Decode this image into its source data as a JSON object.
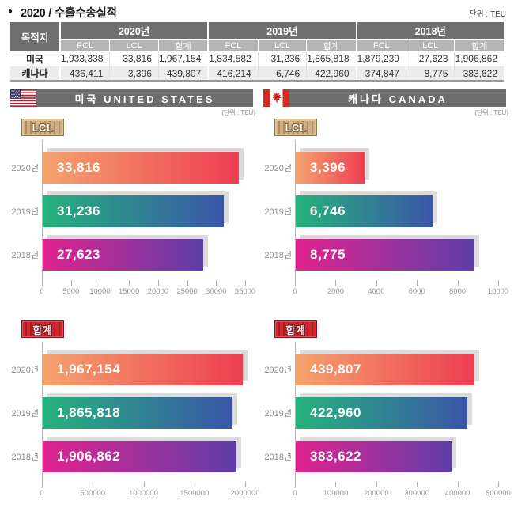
{
  "title": "2020 / 수출수송실적",
  "unit_label": "단위 : TEU",
  "colors": {
    "header_dark": "#6f6f6f",
    "header_light": "#b5b5b5",
    "row_alt": "#ececec",
    "section_bar": "#6d6d6d",
    "bar_shadow": "#dbdbdb",
    "badge_lcl": "#c9a87c",
    "badge_total": "#cb2127"
  },
  "bar_colors": [
    [
      "#f4a36d",
      "#ee3e52"
    ],
    [
      "#25b37c",
      "#3a55a8"
    ],
    [
      "#e1238d",
      "#5e3ea8"
    ]
  ],
  "table": {
    "dest_header": "목적지",
    "year_groups": [
      "2020년",
      "2019년",
      "2018년"
    ],
    "sub_headers": [
      "FCL",
      "LCL",
      "합계"
    ],
    "rows": [
      {
        "dest": "미국",
        "values": [
          "1,933,338",
          "33,816",
          "1,967,154",
          "1,834,582",
          "31,236",
          "1,865,818",
          "1,879,239",
          "27,623",
          "1,906,862"
        ]
      },
      {
        "dest": "캐나다",
        "values": [
          "436,411",
          "3,396",
          "439,807",
          "416,214",
          "6,746",
          "422,960",
          "374,847",
          "8,775",
          "383,622"
        ]
      }
    ]
  },
  "sections": [
    {
      "title": "미국 UNITED STATES",
      "unit_note": "(단위 : TEU)"
    },
    {
      "title": "캐나다 CANADA",
      "unit_note": "(단위 : TEU)"
    }
  ],
  "chart_data": [
    {
      "type": "bar",
      "orientation": "horizontal",
      "section": "미국 UNITED STATES",
      "badge": "LCL",
      "categories": [
        "2020년",
        "2019년",
        "2018년"
      ],
      "values": [
        33816,
        31236,
        27623
      ],
      "value_labels": [
        "33,816",
        "31,236",
        "27,623"
      ],
      "xlim": [
        0,
        35000
      ],
      "xticks": [
        0,
        5000,
        10000,
        15000,
        20000,
        25000,
        30000,
        35000
      ],
      "xtick_labels": [
        "0",
        "5000",
        "10000",
        "15000",
        "20000",
        "25000",
        "30000",
        "35000"
      ]
    },
    {
      "type": "bar",
      "orientation": "horizontal",
      "section": "캐나다 CANADA",
      "badge": "LCL",
      "categories": [
        "2020년",
        "2019년",
        "2018년"
      ],
      "values": [
        3396,
        6746,
        8775
      ],
      "value_labels": [
        "3,396",
        "6,746",
        "8,775"
      ],
      "xlim": [
        0,
        10000
      ],
      "xticks": [
        0,
        2000,
        4000,
        6000,
        8000,
        10000
      ],
      "xtick_labels": [
        "0",
        "2000",
        "4000",
        "6000",
        "8000",
        "10000"
      ]
    },
    {
      "type": "bar",
      "orientation": "horizontal",
      "section": "미국 UNITED STATES",
      "badge": "합계",
      "categories": [
        "2020년",
        "2019년",
        "2018년"
      ],
      "values": [
        1967154,
        1865818,
        1906862
      ],
      "value_labels": [
        "1,967,154",
        "1,865,818",
        "1,906,862"
      ],
      "xlim": [
        0,
        2000000
      ],
      "xticks": [
        0,
        500000,
        1000000,
        1500000,
        2000000
      ],
      "xtick_labels": [
        "0",
        "500000",
        "1000000",
        "1500000",
        "2000000"
      ]
    },
    {
      "type": "bar",
      "orientation": "horizontal",
      "section": "캐나다 CANADA",
      "badge": "합계",
      "categories": [
        "2020년",
        "2019년",
        "2018년"
      ],
      "values": [
        439807,
        422960,
        383622
      ],
      "value_labels": [
        "439,807",
        "422,960",
        "383,622"
      ],
      "xlim": [
        0,
        500000
      ],
      "xticks": [
        0,
        100000,
        200000,
        300000,
        400000,
        500000
      ],
      "xtick_labels": [
        "0",
        "100000",
        "200000",
        "300000",
        "400000",
        "500000"
      ]
    }
  ]
}
